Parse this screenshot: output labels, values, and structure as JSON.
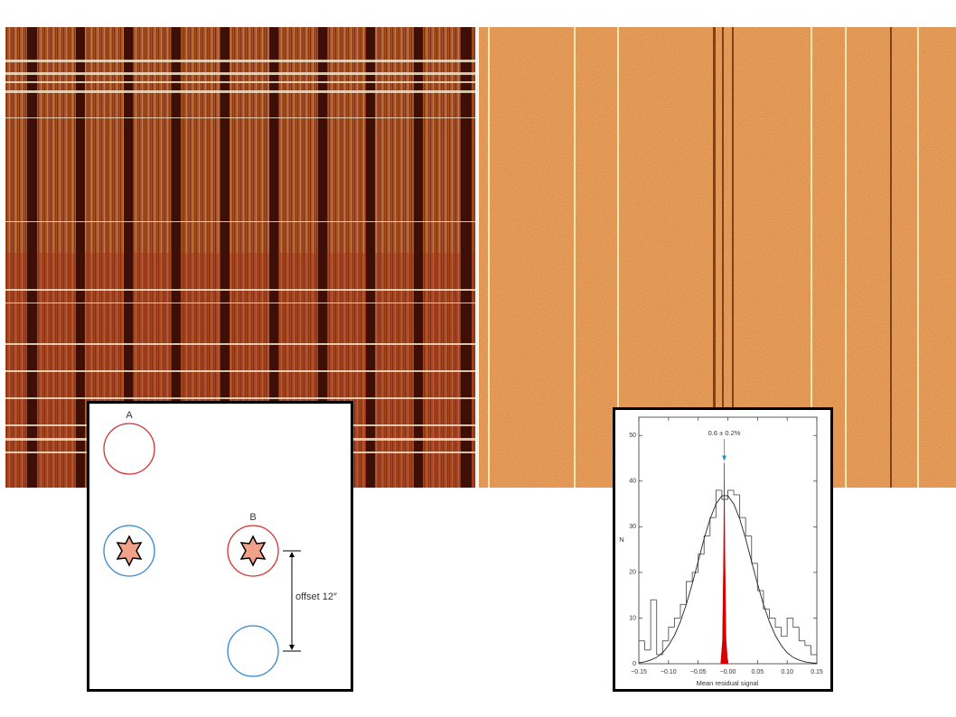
{
  "diagram": {
    "label_a": "A",
    "label_b": "B",
    "offset_label": "offset 12″"
  },
  "chart_data": {
    "type": "histogram",
    "xlabel": "Mean residual signal",
    "ylabel": "N",
    "annotation": "0.6 ± 0.2%",
    "bins": [
      -0.15,
      -0.14,
      -0.13,
      -0.12,
      -0.11,
      -0.1,
      -0.09,
      -0.08,
      -0.07,
      -0.06,
      -0.05,
      -0.04,
      -0.03,
      -0.02,
      -0.01,
      0.0,
      0.01,
      0.02,
      0.03,
      0.04,
      0.05,
      0.06,
      0.07,
      0.08,
      0.09,
      0.1,
      0.11,
      0.12,
      0.13,
      0.14,
      0.15
    ],
    "counts": [
      5,
      3,
      14,
      2,
      5,
      8,
      10,
      13,
      18,
      20,
      24,
      28,
      32,
      38,
      36,
      38,
      37,
      32,
      28,
      22,
      16,
      12,
      10,
      8,
      6,
      10,
      8,
      5,
      4,
      2
    ],
    "color": "#555555",
    "fit": {
      "color": "#222222",
      "x": [
        -0.15,
        -0.14,
        -0.13,
        -0.12,
        -0.11,
        -0.1,
        -0.09,
        -0.08,
        -0.07,
        -0.06,
        -0.05,
        -0.04,
        -0.03,
        -0.02,
        -0.01,
        0.0,
        0.01,
        0.02,
        0.03,
        0.04,
        0.05,
        0.06,
        0.07,
        0.08,
        0.09,
        0.1,
        0.11,
        0.12,
        0.13,
        0.14,
        0.15
      ],
      "values": [
        0.2,
        0.4,
        0.8,
        1.4,
        2.4,
        4.0,
        6.2,
        9.2,
        13.0,
        17.5,
        22.4,
        27.4,
        31.7,
        35.0,
        36.8,
        36.8,
        35.0,
        31.7,
        27.4,
        22.4,
        17.5,
        13.0,
        9.2,
        6.2,
        4.0,
        2.4,
        1.4,
        0.8,
        0.4,
        0.2,
        0.1
      ]
    },
    "peak": {
      "color": "#d40000",
      "x": [
        -0.012,
        -0.009,
        -0.007,
        -0.006,
        -0.005,
        -0.003,
        0.0
      ],
      "values": [
        0,
        5,
        25,
        44,
        25,
        5,
        0
      ]
    },
    "arrow_color": "#2a8fc0",
    "xlim": [
      -0.15,
      0.15
    ],
    "ylim": [
      0,
      54
    ],
    "xticks": [
      {
        "value": -0.15,
        "label": "−0.15"
      },
      {
        "value": -0.1,
        "label": "−0.10"
      },
      {
        "value": -0.05,
        "label": "−0.05"
      },
      {
        "value": 0,
        "label": "−0.00"
      },
      0.05,
      {
        "value": 0.1,
        "label": "0.10"
      },
      0.15
    ],
    "yticks": [
      0,
      10,
      20,
      30,
      40,
      50
    ]
  }
}
